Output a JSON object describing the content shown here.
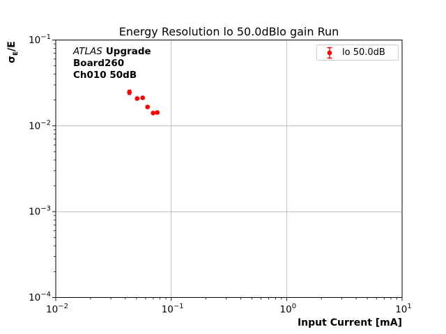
{
  "title": "Energy Resolution lo 50.0dBlo gain Run",
  "annotation": {
    "line1_italic": "ATLAS",
    "line1_bold": "Upgrade",
    "line2": "Board260",
    "line3": "Ch010 50dB"
  },
  "legend": {
    "label": "lo 50.0dB",
    "position": "upper right"
  },
  "ylabel_parts": {
    "sigma": "σ",
    "sub": "E",
    "rest": "/E"
  },
  "colors": {
    "marker": "#ff0000",
    "grid": "#b0b0b0",
    "spine": "#000000",
    "tick_text": "#000000",
    "legend_border": "#cccccc"
  },
  "chart_data": {
    "type": "scatter",
    "title": "Energy Resolution lo 50.0dBlo gain Run",
    "xlabel": "Input Current [mA]",
    "ylabel": "σE/E",
    "xscale": "log",
    "yscale": "log",
    "xlim": [
      0.01,
      10
    ],
    "ylim": [
      0.0001,
      0.1
    ],
    "x_tick_exponents": [
      -2,
      -1,
      0,
      1
    ],
    "y_tick_exponents": [
      -1,
      -2,
      -3,
      -4
    ],
    "grid": true,
    "legend_position": "upper right",
    "series": [
      {
        "name": "lo 50.0dB",
        "color": "#ff0000",
        "marker": "o",
        "x": [
          0.0435,
          0.0507,
          0.0566,
          0.0624,
          0.0697,
          0.0758
        ],
        "y": [
          0.0246,
          0.0208,
          0.0212,
          0.0166,
          0.0141,
          0.0143
        ],
        "yerr": [
          0.0015,
          0.0007,
          0.0007,
          0.0006,
          0.0005,
          0.0005
        ]
      }
    ]
  }
}
